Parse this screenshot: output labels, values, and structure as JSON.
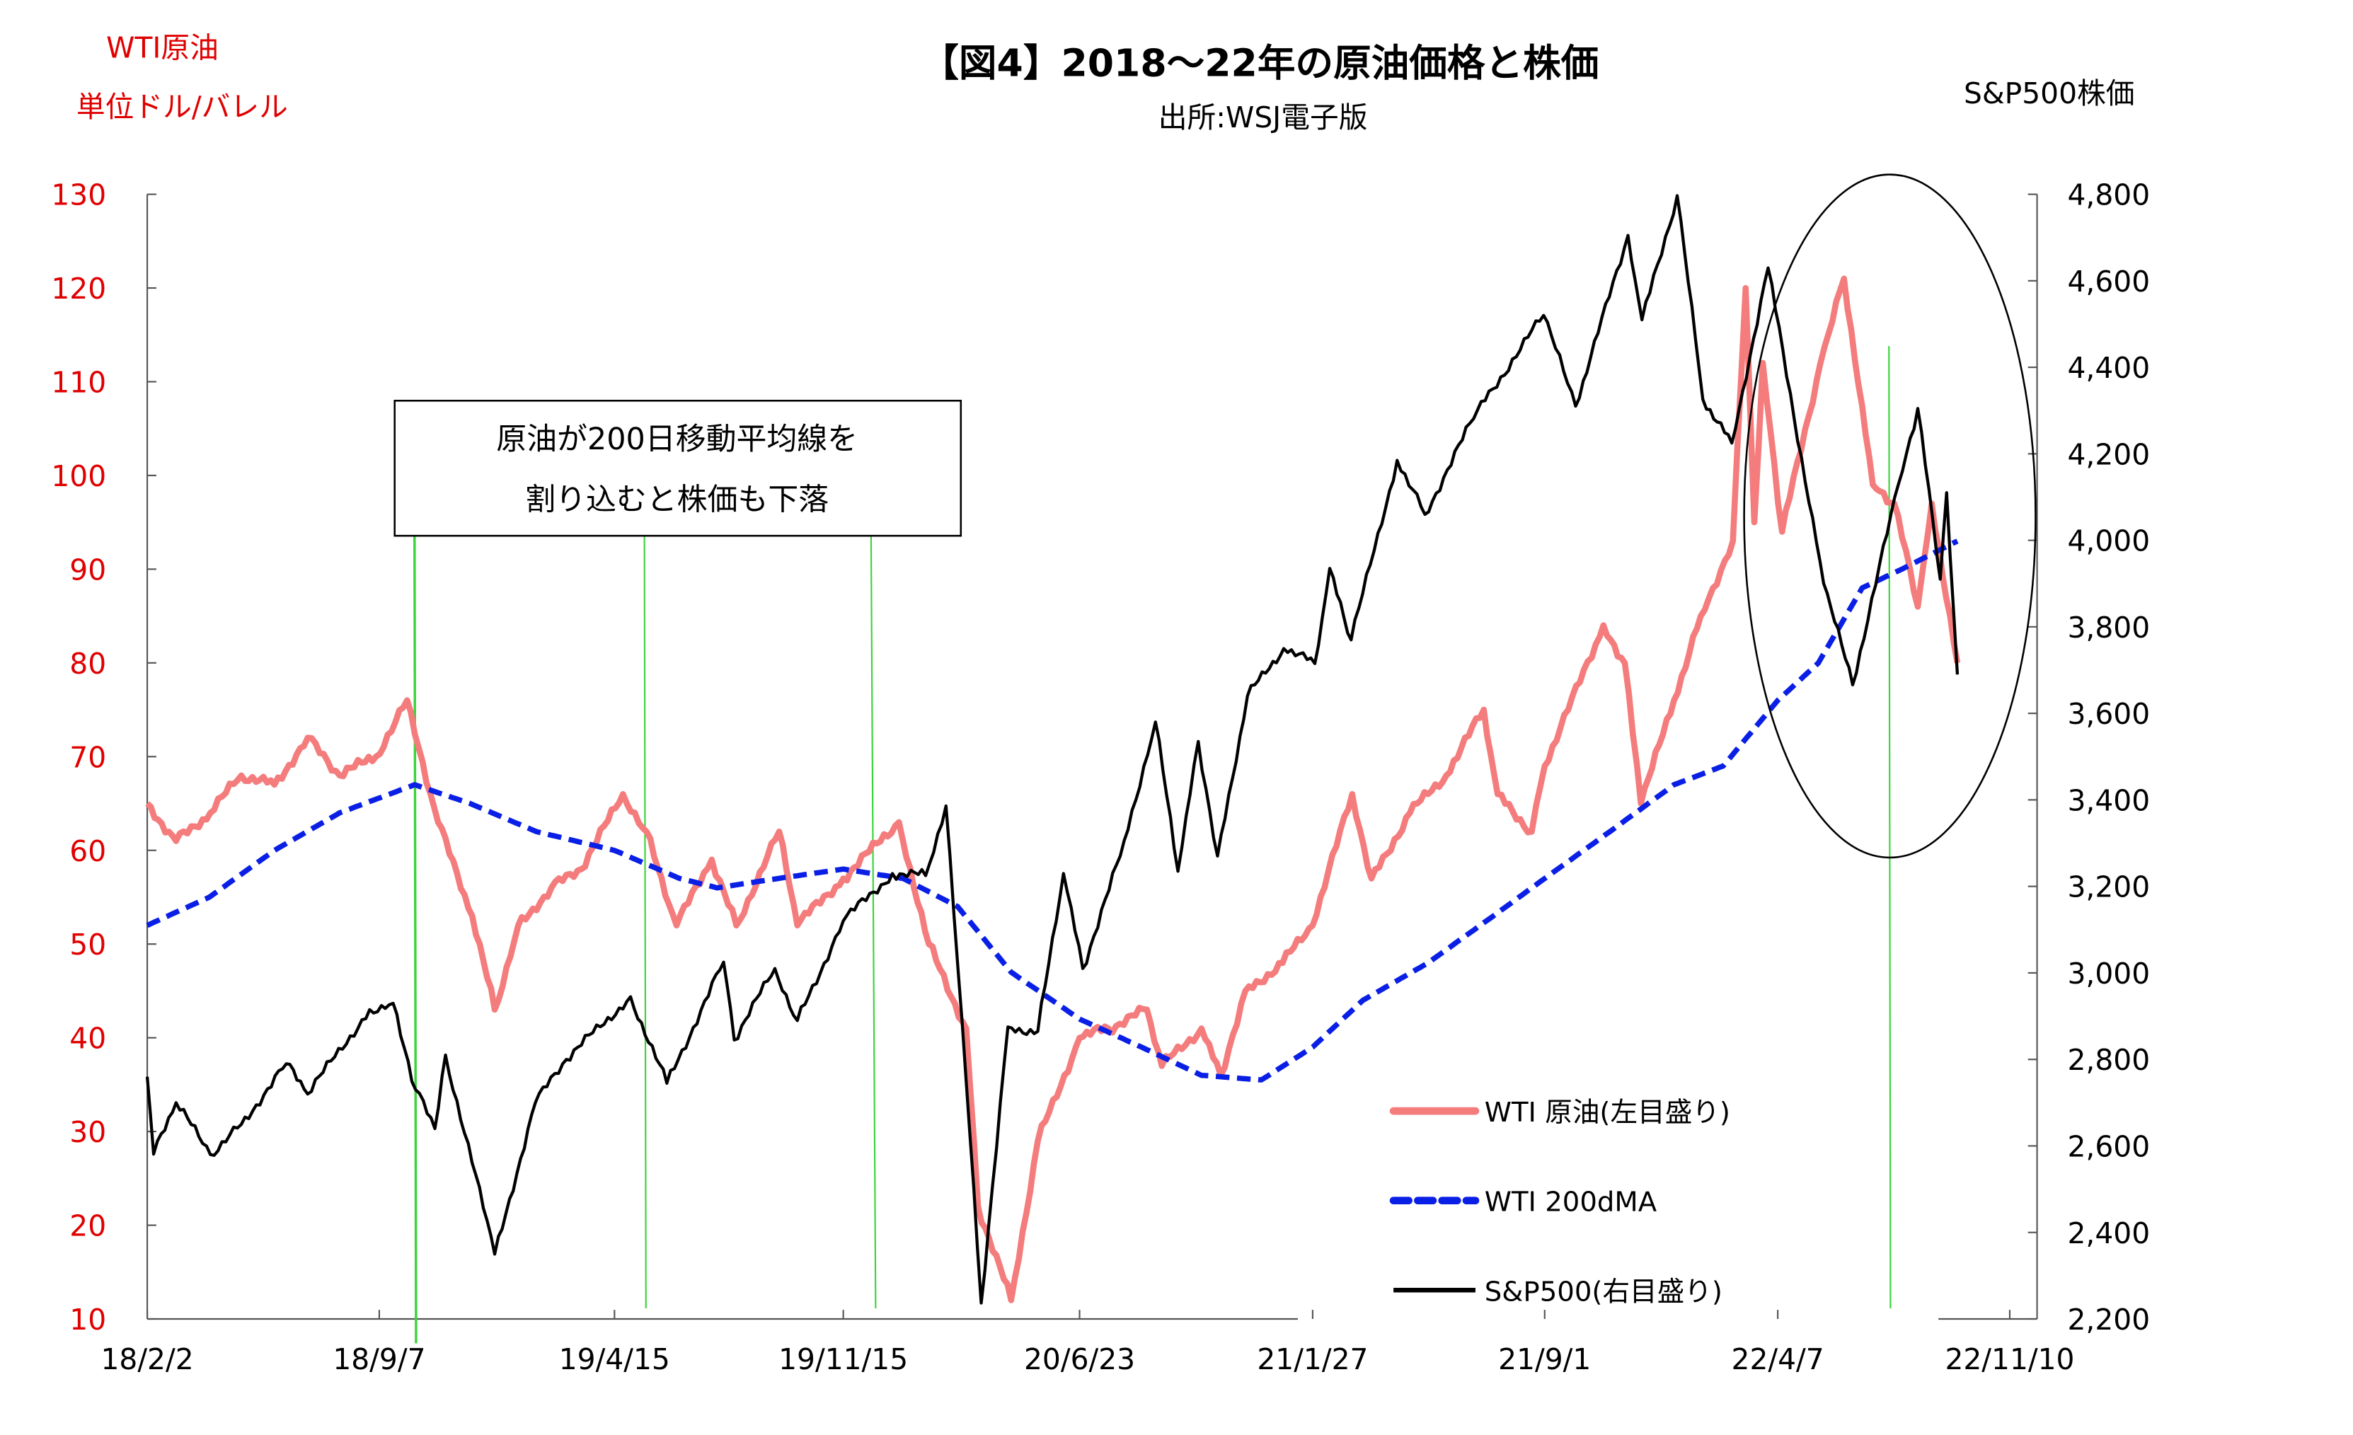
{
  "chart_data": {
    "type": "line",
    "title": "【図4】2018〜22年の原油価格と株価",
    "subtitle": "出所:WSJ電子版",
    "left_axis": {
      "label_line1": "WTI原油",
      "label_line2": "単位ドル/バレル",
      "range": [
        10,
        130
      ],
      "ticks": [
        "130",
        "120",
        "110",
        "100",
        "90",
        "80",
        "70",
        "60",
        "50",
        "40",
        "30",
        "20",
        "10"
      ],
      "color": "#e00000"
    },
    "right_axis": {
      "label": "S&P500株価",
      "range": [
        2200,
        4800
      ],
      "ticks": [
        "4,800",
        "4,600",
        "4,400",
        "4,200",
        "4,000",
        "3,800",
        "3,600",
        "3,400",
        "3,200",
        "3,000",
        "2,800",
        "2,600",
        "2,400",
        "2,200"
      ]
    },
    "x_axis": {
      "range": [
        "2018-02-02",
        "2022-11-10"
      ],
      "ticks": [
        {
          "date": "2018-02-02",
          "label": "18/2/2"
        },
        {
          "date": "2018-09-07",
          "label": "18/9/7"
        },
        {
          "date": "2019-04-15",
          "label": "19/4/15"
        },
        {
          "date": "2019-11-15",
          "label": "19/11/15"
        },
        {
          "date": "2020-06-23",
          "label": "20/6/23"
        },
        {
          "date": "2021-01-27",
          "label": "21/1/27"
        },
        {
          "date": "2021-09-01",
          "label": "21/9/1"
        },
        {
          "date": "2022-04-07",
          "label": "22/4/7"
        },
        {
          "date": "2022-11-10",
          "label": "22/11/10"
        }
      ]
    },
    "grid": false,
    "legend_position": "bottom-right",
    "series": [
      {
        "name": "WTI 原油(左目盛り)",
        "axis": "left",
        "color": "#f47c7c",
        "style": "solid-thick",
        "points": [
          [
            "2018-02-02",
            65
          ],
          [
            "2018-03-01",
            61
          ],
          [
            "2018-04-02",
            64
          ],
          [
            "2018-05-01",
            68
          ],
          [
            "2018-06-01",
            67
          ],
          [
            "2018-07-02",
            72
          ],
          [
            "2018-08-01",
            68
          ],
          [
            "2018-09-04",
            70
          ],
          [
            "2018-10-03",
            76
          ],
          [
            "2018-11-01",
            63
          ],
          [
            "2018-12-03",
            53
          ],
          [
            "2018-12-24",
            43
          ],
          [
            "2019-01-15",
            52
          ],
          [
            "2019-02-15",
            56
          ],
          [
            "2019-03-15",
            58
          ],
          [
            "2019-04-23",
            66
          ],
          [
            "2019-05-15",
            62
          ],
          [
            "2019-06-12",
            52
          ],
          [
            "2019-07-15",
            59
          ],
          [
            "2019-08-07",
            52
          ],
          [
            "2019-09-16",
            62
          ],
          [
            "2019-10-03",
            52
          ],
          [
            "2019-11-15",
            57
          ],
          [
            "2020-01-06",
            63
          ],
          [
            "2020-02-03",
            50
          ],
          [
            "2020-03-09",
            41
          ],
          [
            "2020-03-20",
            22
          ],
          [
            "2020-04-20",
            12
          ],
          [
            "2020-05-15",
            29
          ],
          [
            "2020-06-23",
            40
          ],
          [
            "2020-07-20",
            41
          ],
          [
            "2020-08-25",
            43
          ],
          [
            "2020-09-08",
            37
          ],
          [
            "2020-10-15",
            41
          ],
          [
            "2020-11-02",
            36
          ],
          [
            "2020-11-25",
            45
          ],
          [
            "2020-12-30",
            48
          ],
          [
            "2021-01-27",
            52
          ],
          [
            "2021-03-05",
            66
          ],
          [
            "2021-03-23",
            57
          ],
          [
            "2021-04-28",
            64
          ],
          [
            "2021-06-01",
            68
          ],
          [
            "2021-07-06",
            75
          ],
          [
            "2021-07-19",
            66
          ],
          [
            "2021-08-20",
            62
          ],
          [
            "2021-09-01",
            69
          ],
          [
            "2021-10-26",
            84
          ],
          [
            "2021-11-15",
            80
          ],
          [
            "2021-11-30",
            65
          ],
          [
            "2021-12-31",
            76
          ],
          [
            "2022-01-25",
            85
          ],
          [
            "2022-02-24",
            93
          ],
          [
            "2022-03-08",
            120
          ],
          [
            "2022-03-16",
            95
          ],
          [
            "2022-03-24",
            112
          ],
          [
            "2022-04-11",
            94
          ],
          [
            "2022-05-17",
            112
          ],
          [
            "2022-06-08",
            121
          ],
          [
            "2022-07-05",
            99
          ],
          [
            "2022-07-25",
            97
          ],
          [
            "2022-08-16",
            86
          ],
          [
            "2022-08-29",
            97
          ],
          [
            "2022-09-22",
            80
          ]
        ]
      },
      {
        "name": "WTI 200dMA",
        "axis": "left",
        "color": "#0a1fe6",
        "style": "dashed",
        "points": [
          [
            "2018-02-02",
            52
          ],
          [
            "2018-04-01",
            55
          ],
          [
            "2018-06-01",
            60
          ],
          [
            "2018-08-01",
            64
          ],
          [
            "2018-10-10",
            67
          ],
          [
            "2018-12-01",
            65
          ],
          [
            "2019-02-01",
            62
          ],
          [
            "2019-04-15",
            60
          ],
          [
            "2019-06-15",
            57
          ],
          [
            "2019-07-20",
            56
          ],
          [
            "2019-09-15",
            57
          ],
          [
            "2019-11-15",
            58
          ],
          [
            "2020-01-10",
            57
          ],
          [
            "2020-03-01",
            54
          ],
          [
            "2020-04-20",
            47
          ],
          [
            "2020-06-23",
            42
          ],
          [
            "2020-08-20",
            39
          ],
          [
            "2020-10-15",
            36
          ],
          [
            "2020-12-10",
            35.5
          ],
          [
            "2021-01-27",
            39
          ],
          [
            "2021-03-15",
            44
          ],
          [
            "2021-05-15",
            48
          ],
          [
            "2021-07-15",
            53
          ],
          [
            "2021-09-01",
            57
          ],
          [
            "2021-11-01",
            62
          ],
          [
            "2021-12-31",
            67
          ],
          [
            "2022-02-15",
            69
          ],
          [
            "2022-04-07",
            76
          ],
          [
            "2022-05-15",
            80
          ],
          [
            "2022-06-25",
            88
          ],
          [
            "2022-08-01",
            90
          ],
          [
            "2022-09-22",
            93
          ]
        ]
      },
      {
        "name": "S&P500(右目盛り)",
        "axis": "right",
        "color": "#000000",
        "style": "solid",
        "points": [
          [
            "2018-02-02",
            2760
          ],
          [
            "2018-02-08",
            2581
          ],
          [
            "2018-03-01",
            2700
          ],
          [
            "2018-04-02",
            2580
          ],
          [
            "2018-05-01",
            2650
          ],
          [
            "2018-06-12",
            2790
          ],
          [
            "2018-07-02",
            2720
          ],
          [
            "2018-08-29",
            2915
          ],
          [
            "2018-09-20",
            2930
          ],
          [
            "2018-10-11",
            2730
          ],
          [
            "2018-10-29",
            2640
          ],
          [
            "2018-11-08",
            2810
          ],
          [
            "2018-12-24",
            2350
          ],
          [
            "2019-01-31",
            2700
          ],
          [
            "2019-03-01",
            2800
          ],
          [
            "2019-04-30",
            2945
          ],
          [
            "2019-06-03",
            2745
          ],
          [
            "2019-07-26",
            3025
          ],
          [
            "2019-08-05",
            2845
          ],
          [
            "2019-09-12",
            3010
          ],
          [
            "2019-10-03",
            2890
          ],
          [
            "2019-11-15",
            3120
          ],
          [
            "2019-12-31",
            3230
          ],
          [
            "2020-01-31",
            3225
          ],
          [
            "2020-02-19",
            3386
          ],
          [
            "2020-03-09",
            2750
          ],
          [
            "2020-03-23",
            2237
          ],
          [
            "2020-04-17",
            2875
          ],
          [
            "2020-05-15",
            2865
          ],
          [
            "2020-06-08",
            3230
          ],
          [
            "2020-06-26",
            3010
          ],
          [
            "2020-07-31",
            3270
          ],
          [
            "2020-09-02",
            3580
          ],
          [
            "2020-09-23",
            3235
          ],
          [
            "2020-10-12",
            3535
          ],
          [
            "2020-10-30",
            3270
          ],
          [
            "2020-11-27",
            3640
          ],
          [
            "2020-12-31",
            3750
          ],
          [
            "2021-01-29",
            3715
          ],
          [
            "2021-02-12",
            3935
          ],
          [
            "2021-03-04",
            3770
          ],
          [
            "2021-04-16",
            4185
          ],
          [
            "2021-05-12",
            4060
          ],
          [
            "2021-06-30",
            4300
          ],
          [
            "2021-08-31",
            4520
          ],
          [
            "2021-09-30",
            4310
          ],
          [
            "2021-11-18",
            4705
          ],
          [
            "2021-12-01",
            4510
          ],
          [
            "2022-01-03",
            4797
          ],
          [
            "2022-01-27",
            4326
          ],
          [
            "2022-02-23",
            4225
          ],
          [
            "2022-03-29",
            4630
          ],
          [
            "2022-05-20",
            3900
          ],
          [
            "2022-06-16",
            3666
          ],
          [
            "2022-07-29",
            4130
          ],
          [
            "2022-08-16",
            4305
          ],
          [
            "2022-09-06",
            3910
          ],
          [
            "2022-09-12",
            4110
          ],
          [
            "2022-09-22",
            3690
          ]
        ]
      }
    ],
    "annotations": {
      "text_line1": "原油が200日移動平均線を",
      "text_line2": "割り込むと株価も下落",
      "green_lines_dates": [
        "2018-10-10",
        "2019-05-13",
        "2019-12-11",
        "2022-07-20"
      ],
      "green_line_color": "#3ad43a",
      "highlight_ellipse": "2022 period"
    }
  }
}
